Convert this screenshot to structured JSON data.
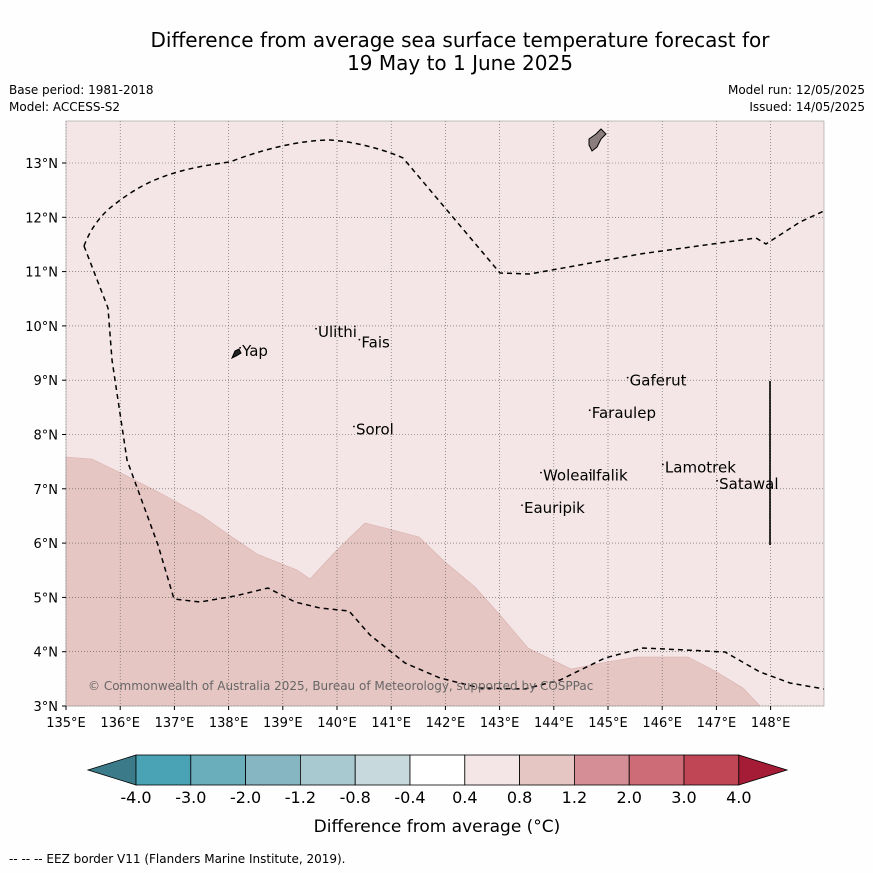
{
  "header": {
    "title_line1": "Difference from average sea surface temperature forecast for",
    "title_line2": "19 May to 1 June 2025",
    "base_period": "Base period: 1981-2018",
    "model": "Model: ACCESS-S2",
    "model_run": "Model run: 12/05/2025",
    "issued": "Issued: 14/05/2025"
  },
  "map": {
    "x_ticks": [
      "135°E",
      "136°E",
      "137°E",
      "138°E",
      "139°E",
      "140°E",
      "141°E",
      "142°E",
      "143°E",
      "144°E",
      "145°E",
      "146°E",
      "147°E",
      "148°E"
    ],
    "y_ticks": [
      "3°N",
      "4°N",
      "5°N",
      "6°N",
      "7°N",
      "8°N",
      "9°N",
      "10°N",
      "11°N",
      "12°N",
      "13°N"
    ],
    "places": [
      {
        "name": "Yap",
        "lon": 138.25,
        "lat": 9.45
      },
      {
        "name": "Ulithi",
        "lon": 139.65,
        "lat": 9.8
      },
      {
        "name": "Fais",
        "lon": 140.45,
        "lat": 9.6
      },
      {
        "name": "Gaferut",
        "lon": 145.4,
        "lat": 8.9
      },
      {
        "name": "Faraulep",
        "lon": 144.7,
        "lat": 8.3
      },
      {
        "name": "Sorol",
        "lon": 140.35,
        "lat": 8.0
      },
      {
        "name": "Lamotrek",
        "lon": 146.05,
        "lat": 7.3
      },
      {
        "name": "Woleai",
        "lon": 143.8,
        "lat": 7.15
      },
      {
        "name": "Ifalik",
        "lon": 144.7,
        "lat": 7.15
      },
      {
        "name": "Satawal",
        "lon": 147.05,
        "lat": 7.0
      },
      {
        "name": "Eauripik",
        "lon": 143.45,
        "lat": 6.55
      }
    ],
    "copyright": "© Commonwealth of Australia 2025, Bureau of Meteorology, supported by COSPPac",
    "colors": {
      "background_bin": "#f4e6e6",
      "warmer_bin": "#e6c6c3",
      "land": "#8b7c7e"
    }
  },
  "colorbar": {
    "tick_labels": [
      "-4.0",
      "-3.0",
      "-2.0",
      "-1.2",
      "-0.8",
      "-0.4",
      "0.4",
      "0.8",
      "1.2",
      "2.0",
      "3.0",
      "4.0"
    ],
    "colors": [
      "#3b7a88",
      "#4aa3b4",
      "#6aaebc",
      "#87b6c3",
      "#a8c9d0",
      "#c8d9dd",
      "#ffffff",
      "#f4e6e6",
      "#e6c6c3",
      "#d58e95",
      "#cd6b76",
      "#c04656",
      "#a51c36"
    ],
    "label": "Difference from average (°C)"
  },
  "footer": {
    "legend": "--  --  -- EEZ border V11 (Flanders Marine Institute, 2019)."
  }
}
